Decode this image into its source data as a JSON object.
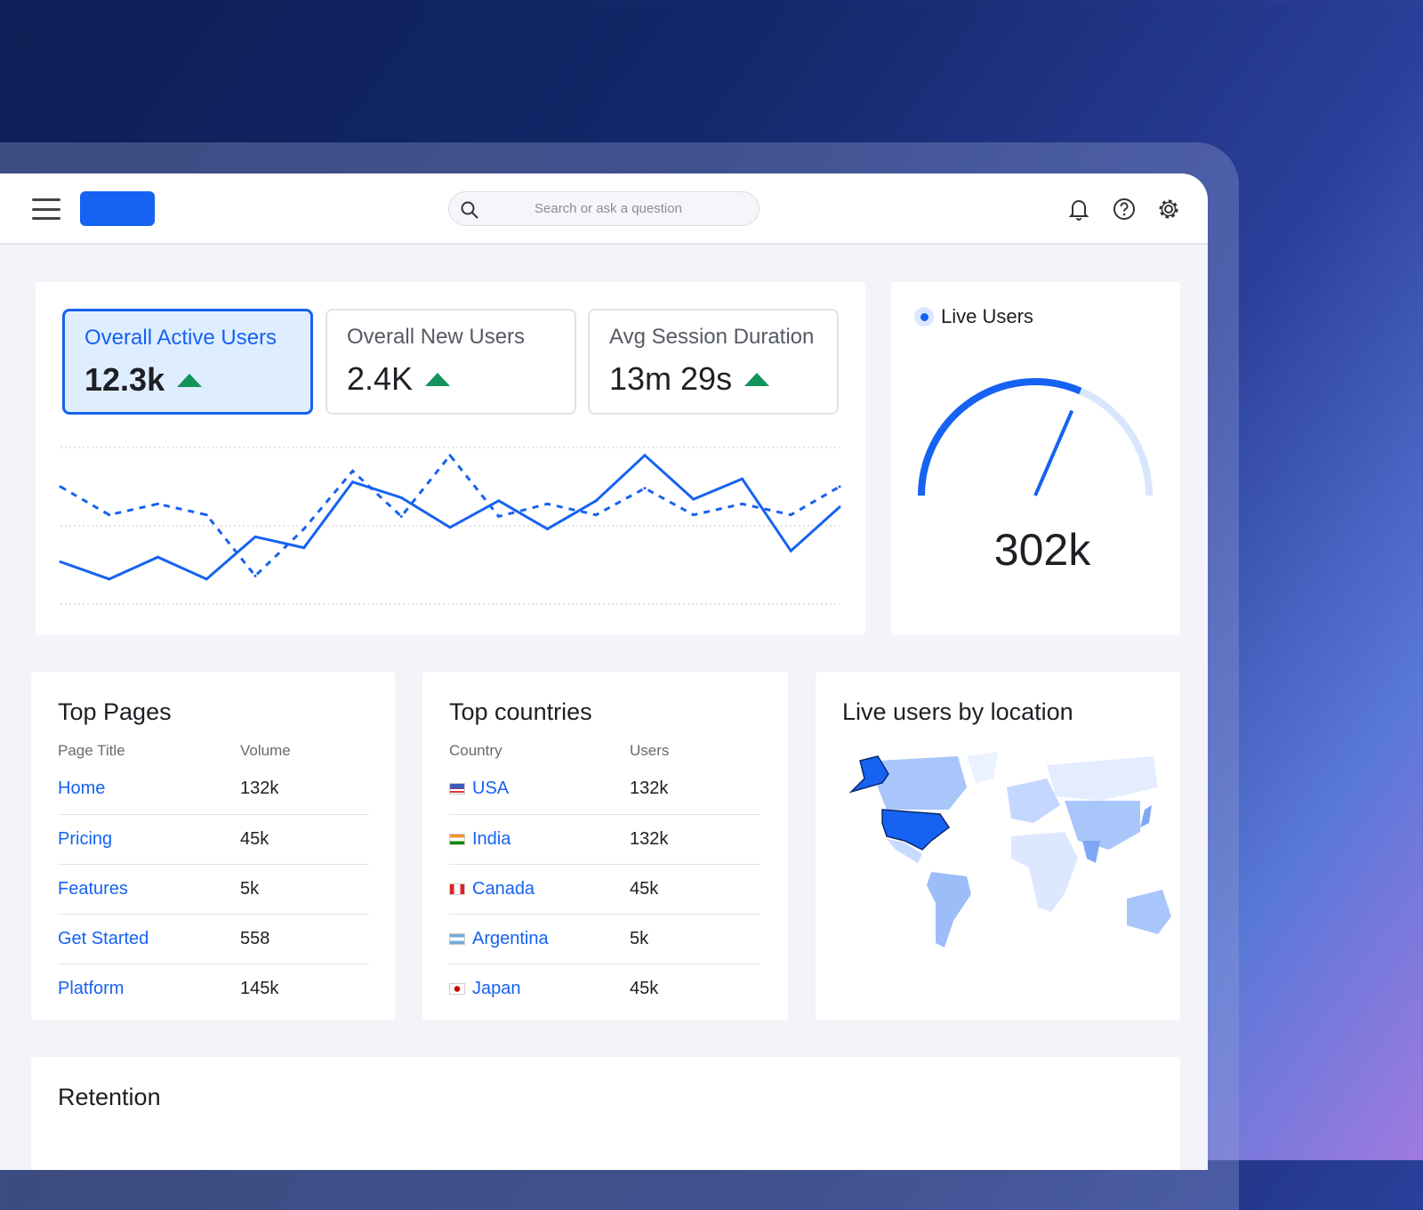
{
  "header": {
    "search_placeholder": "Search or ask a question",
    "icons": [
      "menu-icon",
      "bell-icon",
      "help-icon",
      "gear-icon"
    ]
  },
  "kpis": [
    {
      "label": "Overall Active Users",
      "value": "12.3k",
      "trend": "up"
    },
    {
      "label": "Overall New Users",
      "value": "2.4K",
      "trend": "up"
    },
    {
      "label": "Avg Session Duration",
      "value": "13m 29s",
      "trend": "up"
    }
  ],
  "colors": {
    "accent": "#1662f2",
    "up": "#12945a"
  },
  "chart_data": {
    "type": "line",
    "x": [
      1,
      2,
      3,
      4,
      5,
      6,
      7,
      8,
      9,
      10,
      11,
      12,
      13,
      14,
      15,
      16,
      17
    ],
    "ylim": [
      0,
      100
    ],
    "grid": true,
    "series": [
      {
        "name": "solid",
        "style": "solid",
        "values": [
          27,
          16,
          30,
          16,
          43,
          36,
          78,
          68,
          49,
          66,
          48,
          66,
          95,
          67,
          80,
          34,
          62
        ]
      },
      {
        "name": "dashed",
        "style": "dashed",
        "values": [
          75,
          57,
          64,
          57,
          18,
          48,
          85,
          56,
          95,
          56,
          64,
          57,
          74,
          57,
          64,
          57,
          75
        ]
      }
    ]
  },
  "live": {
    "title": "Live Users",
    "value": "302k",
    "gauge_fraction": 0.63
  },
  "top_pages": {
    "title": "Top Pages",
    "columns": [
      "Page Title",
      "Volume"
    ],
    "rows": [
      [
        "Home",
        "132k"
      ],
      [
        "Pricing",
        "45k"
      ],
      [
        "Features",
        "5k"
      ],
      [
        "Get Started",
        "558"
      ],
      [
        "Platform",
        "145k"
      ]
    ]
  },
  "top_countries": {
    "title": "Top countries",
    "columns": [
      "Country",
      "Users"
    ],
    "rows": [
      [
        "USA",
        "132k"
      ],
      [
        "India",
        "132k"
      ],
      [
        "Canada",
        "45k"
      ],
      [
        "Argentina",
        "5k"
      ],
      [
        "Japan",
        "45k"
      ]
    ]
  },
  "map": {
    "title": "Live users by location",
    "highlight": "USA"
  },
  "retention": {
    "title": "Retention"
  }
}
